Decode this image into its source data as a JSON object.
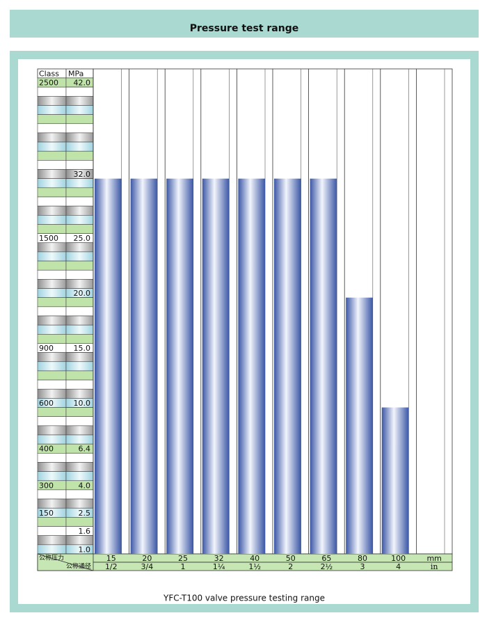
{
  "title": "Pressure test range",
  "caption": "YFC-T100 valve pressure testing range",
  "chart_data": {
    "type": "bar",
    "class_header": "Class",
    "y_header": "MPa",
    "yticks": [
      {
        "value": 42,
        "label": "42.0"
      },
      null,
      null,
      null,
      null,
      null,
      null,
      null,
      null,
      null,
      {
        "value": 32,
        "label": "32.0"
      },
      null,
      null,
      null,
      null,
      null,
      null,
      {
        "value": 25,
        "label": "25.0"
      },
      null,
      null,
      null,
      null,
      null,
      {
        "value": 20,
        "label": "20.0"
      },
      null,
      null,
      null,
      null,
      null,
      {
        "value": 15,
        "label": "15.0"
      },
      null,
      null,
      null,
      null,
      null,
      {
        "value": 10,
        "label": "10.0"
      },
      null,
      null,
      null,
      null,
      6.4,
      null,
      null,
      null,
      {
        "value": 4,
        "label": "4.0"
      },
      null,
      null,
      2.5,
      null,
      1.6,
      null,
      {
        "value": 1,
        "label": "1.0"
      }
    ],
    "class_labels": [
      2500,
      null,
      null,
      null,
      null,
      null,
      null,
      null,
      null,
      null,
      null,
      null,
      null,
      null,
      null,
      null,
      null,
      1500,
      null,
      null,
      null,
      null,
      null,
      null,
      null,
      null,
      null,
      null,
      null,
      900,
      null,
      null,
      null,
      null,
      null,
      600,
      null,
      null,
      null,
      null,
      400,
      null,
      null,
      null,
      300,
      null,
      null,
      150,
      null,
      null,
      null,
      null
    ],
    "x_axis_label": "公称压力",
    "x2_axis_label": "公称通径",
    "categories": [
      "15",
      "20",
      "25",
      "32",
      "40",
      "50",
      "65",
      "80",
      "100"
    ],
    "categories2": [
      "1/2",
      "3/4",
      "1",
      "1¼",
      "1½",
      "2",
      "2½",
      "3",
      "4"
    ],
    "x_unit": "mm",
    "x2_unit": "in",
    "values": [
      32,
      32,
      32,
      32,
      32,
      32,
      32,
      20,
      10
    ],
    "color": "#3b57a6"
  }
}
